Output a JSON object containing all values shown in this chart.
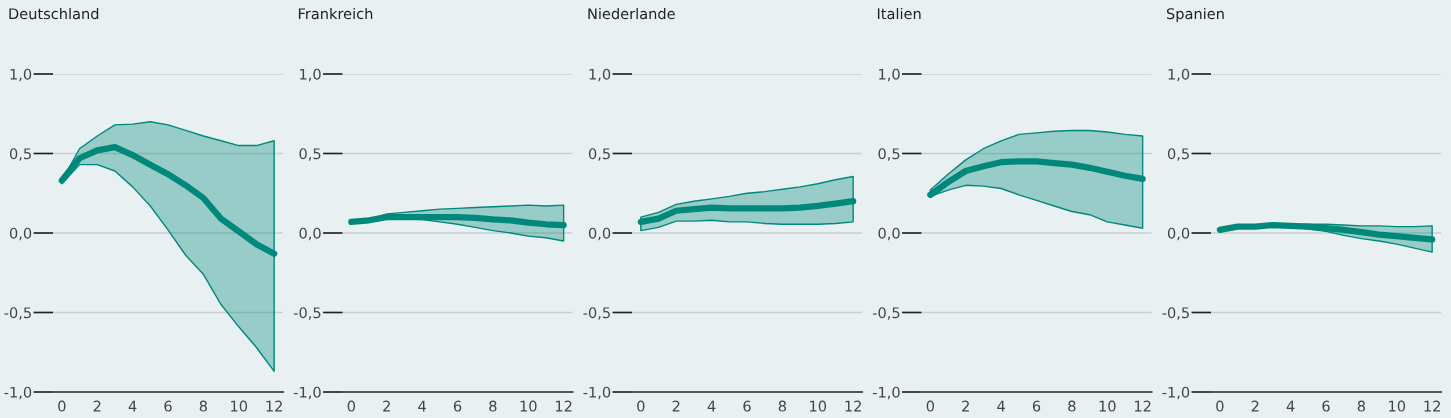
{
  "chart_data": [
    {
      "type": "line",
      "title": "Deutschland",
      "x": [
        0,
        1,
        2,
        3,
        4,
        5,
        6,
        7,
        8,
        9,
        10,
        11,
        12
      ],
      "xlim": [
        -0.5,
        12.5
      ],
      "ylim": [
        -1.0,
        1.0
      ],
      "xticks": [
        0,
        2,
        4,
        6,
        8,
        10,
        12
      ],
      "yticks": [
        {
          "value": -1.0,
          "label": "-1,0"
        },
        {
          "value": -0.5,
          "label": "-0,5"
        },
        {
          "value": 0.0,
          "label": "0,0"
        },
        {
          "value": 0.5,
          "label": "0,5"
        },
        {
          "value": 1.0,
          "label": "1,0"
        }
      ],
      "grid": "y",
      "marker": "none",
      "line_style": "solid",
      "series": [
        {
          "color": "#00897b",
          "values": [
            0.33,
            0.47,
            0.52,
            0.54,
            0.49,
            0.43,
            0.37,
            0.3,
            0.22,
            0.09,
            0.01,
            -0.07,
            -0.13
          ],
          "upper": [
            0.33,
            0.53,
            0.61,
            0.68,
            0.685,
            0.7,
            0.68,
            0.645,
            0.61,
            0.58,
            0.55,
            0.55,
            0.58
          ],
          "lower": [
            0.31,
            0.43,
            0.43,
            0.39,
            0.29,
            0.17,
            0.02,
            -0.14,
            -0.26,
            -0.45,
            -0.59,
            -0.72,
            -0.87
          ]
        }
      ]
    },
    {
      "type": "line",
      "title": "Frankreich",
      "x": [
        0,
        1,
        2,
        3,
        4,
        5,
        6,
        7,
        8,
        9,
        10,
        11,
        12
      ],
      "xlim": [
        -0.5,
        12.5
      ],
      "ylim": [
        -1.0,
        1.0
      ],
      "xticks": [
        0,
        2,
        4,
        6,
        8,
        10,
        12
      ],
      "yticks": [
        {
          "value": -1.0,
          "label": "-1,0"
        },
        {
          "value": -0.5,
          "label": "-0,5"
        },
        {
          "value": 0.0,
          "label": "0,0"
        },
        {
          "value": 0.5,
          "label": "0,5"
        },
        {
          "value": 1.0,
          "label": "1,0"
        }
      ],
      "grid": "y",
      "marker": "none",
      "line_style": "solid",
      "series": [
        {
          "color": "#00897b",
          "values": [
            0.07,
            0.08,
            0.1,
            0.1,
            0.1,
            0.1,
            0.1,
            0.095,
            0.085,
            0.08,
            0.065,
            0.055,
            0.05
          ],
          "upper": [
            0.07,
            0.085,
            0.12,
            0.13,
            0.14,
            0.15,
            0.155,
            0.16,
            0.165,
            0.17,
            0.175,
            0.17,
            0.175
          ],
          "lower": [
            0.07,
            0.08,
            0.095,
            0.09,
            0.085,
            0.07,
            0.055,
            0.035,
            0.015,
            0.0,
            -0.02,
            -0.03,
            -0.05
          ]
        }
      ]
    },
    {
      "type": "line",
      "title": "Niederlande",
      "x": [
        0,
        1,
        2,
        3,
        4,
        5,
        6,
        7,
        8,
        9,
        10,
        11,
        12
      ],
      "xlim": [
        -0.5,
        12.5
      ],
      "ylim": [
        -1.0,
        1.0
      ],
      "xticks": [
        0,
        2,
        4,
        6,
        8,
        10,
        12
      ],
      "yticks": [
        {
          "value": -1.0,
          "label": "-1,0"
        },
        {
          "value": -0.5,
          "label": "-0,5"
        },
        {
          "value": 0.0,
          "label": "0,0"
        },
        {
          "value": 0.5,
          "label": "0,5"
        },
        {
          "value": 1.0,
          "label": "1,0"
        }
      ],
      "grid": "y",
      "marker": "none",
      "line_style": "solid",
      "series": [
        {
          "color": "#00897b",
          "values": [
            0.07,
            0.09,
            0.14,
            0.15,
            0.16,
            0.155,
            0.155,
            0.155,
            0.155,
            0.16,
            0.17,
            0.185,
            0.2
          ],
          "upper": [
            0.1,
            0.13,
            0.18,
            0.2,
            0.215,
            0.23,
            0.25,
            0.26,
            0.275,
            0.29,
            0.31,
            0.335,
            0.355
          ],
          "lower": [
            0.015,
            0.035,
            0.075,
            0.075,
            0.08,
            0.07,
            0.07,
            0.06,
            0.055,
            0.055,
            0.055,
            0.06,
            0.07
          ]
        }
      ]
    },
    {
      "type": "line",
      "title": "Italien",
      "x": [
        0,
        1,
        2,
        3,
        4,
        5,
        6,
        7,
        8,
        9,
        10,
        11,
        12
      ],
      "xlim": [
        -0.5,
        12.5
      ],
      "ylim": [
        -1.0,
        1.0
      ],
      "xticks": [
        0,
        2,
        4,
        6,
        8,
        10,
        12
      ],
      "yticks": [
        {
          "value": -1.0,
          "label": "-1,0"
        },
        {
          "value": -0.5,
          "label": "-0,5"
        },
        {
          "value": 0.0,
          "label": "0,0"
        },
        {
          "value": 0.5,
          "label": "0,5"
        },
        {
          "value": 1.0,
          "label": "1,0"
        }
      ],
      "grid": "y",
      "marker": "none",
      "line_style": "solid",
      "series": [
        {
          "color": "#00897b",
          "values": [
            0.24,
            0.32,
            0.39,
            0.42,
            0.445,
            0.45,
            0.45,
            0.44,
            0.43,
            0.41,
            0.385,
            0.36,
            0.34
          ],
          "upper": [
            0.27,
            0.37,
            0.46,
            0.53,
            0.58,
            0.62,
            0.63,
            0.64,
            0.645,
            0.645,
            0.635,
            0.62,
            0.61
          ],
          "lower": [
            0.23,
            0.27,
            0.3,
            0.295,
            0.28,
            0.24,
            0.205,
            0.17,
            0.135,
            0.115,
            0.07,
            0.05,
            0.03
          ]
        }
      ]
    },
    {
      "type": "line",
      "title": "Spanien",
      "x": [
        0,
        1,
        2,
        3,
        4,
        5,
        6,
        7,
        8,
        9,
        10,
        11,
        12
      ],
      "xlim": [
        -0.5,
        12.5
      ],
      "ylim": [
        -1.0,
        1.0
      ],
      "xticks": [
        0,
        2,
        4,
        6,
        8,
        10,
        12
      ],
      "yticks": [
        {
          "value": -1.0,
          "label": "-1,0"
        },
        {
          "value": -0.5,
          "label": "-0,5"
        },
        {
          "value": 0.0,
          "label": "0,0"
        },
        {
          "value": 0.5,
          "label": "0,5"
        },
        {
          "value": 1.0,
          "label": "1,0"
        }
      ],
      "grid": "y",
      "marker": "none",
      "line_style": "solid",
      "series": [
        {
          "color": "#00897b",
          "values": [
            0.02,
            0.04,
            0.04,
            0.05,
            0.045,
            0.04,
            0.03,
            0.02,
            0.005,
            -0.01,
            -0.02,
            -0.03,
            -0.04
          ],
          "upper": [
            0.02,
            0.045,
            0.045,
            0.05,
            0.05,
            0.055,
            0.055,
            0.05,
            0.045,
            0.045,
            0.04,
            0.04,
            0.045
          ],
          "lower": [
            0.02,
            0.04,
            0.04,
            0.045,
            0.04,
            0.025,
            0.01,
            -0.015,
            -0.035,
            -0.05,
            -0.07,
            -0.095,
            -0.12
          ]
        }
      ]
    }
  ]
}
